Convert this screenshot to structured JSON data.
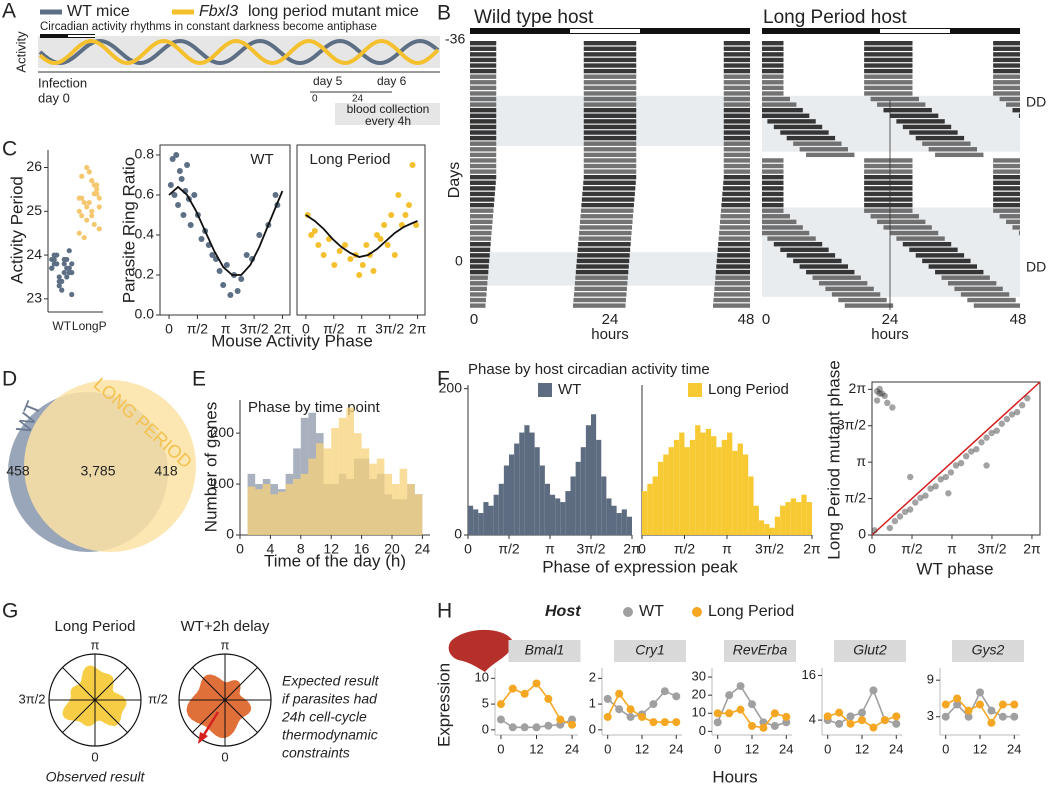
{
  "figure": {
    "panel_labels": [
      "A",
      "B",
      "C",
      "D",
      "E",
      "F",
      "G",
      "H"
    ]
  },
  "panel_a": {
    "legend": [
      {
        "label": "WT mice"
      },
      {
        "gene": "Fbxl3",
        "label": "long period mutant mice"
      }
    ],
    "subtitle": "Circadian activity rhythms in constant darkness become antiphase",
    "ylabel": "Activity",
    "infection": [
      "Infection",
      "day 0"
    ],
    "days": [
      "day 5",
      "day 6"
    ],
    "hours": [
      "0",
      "24"
    ],
    "collection": [
      "blood collection",
      "every 4h"
    ]
  },
  "panel_b": {
    "titles": [
      "Wild type host",
      "Long Period host"
    ],
    "ylabel": "Days",
    "yticks": [
      "-36",
      "0"
    ],
    "conditions": [
      "DD",
      "DD"
    ],
    "xticks": [
      "0",
      "24",
      "48"
    ],
    "xlabel": "hours"
  },
  "panel_g": {
    "titles": [
      "Long Period",
      "WT+2h delay"
    ],
    "angles": [
      "π",
      "3π/2",
      "π/2",
      "0"
    ],
    "caption": "Observed result",
    "note": [
      "Expected result",
      "if parasites had",
      "24h cell-cycle",
      "thermodynamic",
      "constraints"
    ]
  },
  "panel_h": {
    "title": "Host"
  },
  "chart_data": [
    {
      "type": "strip",
      "ylabel": "Activity Period",
      "categories": [
        "WT",
        "LongP"
      ],
      "colors": [
        "#5d6f85",
        "#f5c870"
      ],
      "ylim": [
        22.7,
        26.4
      ],
      "yticks": [
        23,
        24,
        25,
        26
      ],
      "values": [
        [
          23.9,
          23.7,
          23.8,
          23.5,
          24.0,
          23.6,
          23.9,
          23.4,
          23.8,
          23.7,
          24.1,
          23.6,
          23.3,
          23.9,
          23.8,
          23.5,
          23.2,
          24.0,
          23.7,
          23.6,
          23.9,
          23.4,
          23.8,
          23.1,
          23.7
        ],
        [
          25.3,
          25.6,
          24.9,
          25.1,
          25.8,
          24.6,
          25.4,
          25.2,
          24.4,
          25.0,
          25.5,
          25.7,
          24.8,
          25.3,
          25.1,
          24.7,
          25.9,
          25.2,
          24.5,
          25.4,
          25.0,
          26.0,
          24.9,
          25.3,
          25.6
        ]
      ]
    },
    {
      "type": "scatter",
      "title": "WT",
      "ylabel": "Parasite Ring Ratio",
      "xlabel": "Mouse Activity Phase",
      "xlim": [
        -0.5,
        6.7
      ],
      "xticks": [
        0,
        {
          "value": 1.5708,
          "label": "π/2"
        },
        {
          "value": 3.1416,
          "label": "π"
        },
        {
          "value": 4.7124,
          "label": "3π/2"
        },
        {
          "value": 6.2832,
          "label": "2π"
        }
      ],
      "ylim": [
        0,
        0.85
      ],
      "yticks": [
        {
          "value": 0,
          "label": "0.0"
        },
        {
          "value": 0.2,
          "label": "0.2"
        },
        {
          "value": 0.4,
          "label": "0.4"
        },
        {
          "value": 0.6,
          "label": "0.6"
        },
        {
          "value": 0.8,
          "label": "0.8"
        }
      ],
      "series": [
        {
          "color": "#5d6f85",
          "style": "points",
          "x": [
            0.1,
            0.2,
            0.3,
            0.4,
            0.5,
            0.6,
            0.7,
            0.8,
            0.9,
            1.0,
            1.1,
            1.2,
            1.4,
            1.6,
            1.8,
            2.0,
            2.2,
            2.4,
            2.6,
            2.8,
            3.0,
            3.2,
            3.4,
            3.6,
            3.8,
            4.0,
            4.3,
            4.6,
            5.0,
            5.5,
            5.9,
            6.0
          ],
          "values": [
            0.65,
            0.78,
            0.6,
            0.8,
            0.55,
            0.72,
            0.68,
            0.5,
            0.62,
            0.75,
            0.58,
            0.45,
            0.6,
            0.5,
            0.38,
            0.42,
            0.35,
            0.3,
            0.28,
            0.22,
            0.15,
            0.25,
            0.1,
            0.2,
            0.12,
            0.18,
            0.3,
            0.28,
            0.4,
            0.45,
            0.6,
            0.55
          ]
        },
        {
          "color": "#111111",
          "style": "line",
          "x": [
            0,
            0.5,
            1,
            1.5,
            2,
            2.5,
            3,
            3.5,
            4,
            4.5,
            5,
            5.5,
            6,
            6.28
          ],
          "values": [
            0.6,
            0.64,
            0.6,
            0.52,
            0.42,
            0.32,
            0.24,
            0.2,
            0.2,
            0.25,
            0.34,
            0.45,
            0.56,
            0.62
          ]
        }
      ]
    },
    {
      "type": "scatter",
      "title": "Long Period",
      "xlim": [
        -0.5,
        6.7
      ],
      "xticks": [
        0,
        {
          "value": 1.5708,
          "label": "π/2"
        },
        {
          "value": 3.1416,
          "label": "π"
        },
        {
          "value": 4.7124,
          "label": "3π/2"
        },
        {
          "value": 6.2832,
          "label": "2π"
        }
      ],
      "ylim": [
        0,
        0.85
      ],
      "series": [
        {
          "color": "#f5c02e",
          "style": "points",
          "x": [
            0.1,
            0.3,
            0.5,
            0.7,
            1.0,
            1.3,
            1.6,
            1.9,
            2.2,
            2.5,
            2.8,
            3.0,
            3.2,
            3.4,
            3.6,
            3.8,
            4.0,
            4.2,
            4.4,
            4.6,
            4.8,
            5.0,
            5.2,
            5.4,
            5.6,
            5.8,
            6.0,
            6.2
          ],
          "values": [
            0.5,
            0.4,
            0.42,
            0.35,
            0.3,
            0.38,
            0.25,
            0.32,
            0.35,
            0.28,
            0.3,
            0.2,
            0.25,
            0.35,
            0.3,
            0.22,
            0.4,
            0.38,
            0.45,
            0.35,
            0.5,
            0.3,
            0.6,
            0.45,
            0.5,
            0.55,
            0.75,
            0.45
          ]
        },
        {
          "color": "#111111",
          "style": "line",
          "x": [
            0,
            0.5,
            1,
            1.5,
            2,
            2.5,
            3,
            3.5,
            4,
            4.5,
            5,
            5.5,
            6,
            6.28
          ],
          "values": [
            0.5,
            0.47,
            0.43,
            0.38,
            0.34,
            0.31,
            0.29,
            0.3,
            0.33,
            0.37,
            0.41,
            0.44,
            0.46,
            0.47
          ]
        }
      ]
    },
    {
      "type": "venn",
      "sets": [
        "WT",
        "LONG PERIOD"
      ],
      "colors": [
        "#8e9bb0",
        "#fbe2a4"
      ],
      "values": [
        458,
        3785,
        418
      ],
      "value_labels": [
        "458",
        "3,785",
        "418"
      ]
    },
    {
      "type": "histogram",
      "title": "Phase by time point",
      "ylabel": "Number of genes",
      "xlabel": "Time of the day (h)",
      "xlim": [
        0,
        25
      ],
      "xticks": [
        0,
        4,
        8,
        12,
        16,
        20,
        24
      ],
      "ylim": [
        0,
        265
      ],
      "yticks": [
        0,
        100,
        200
      ],
      "bins": [
        1,
        2,
        3,
        4,
        5,
        6,
        7,
        8,
        9,
        10,
        11,
        12,
        13,
        14,
        15,
        16,
        17,
        18,
        19,
        20,
        21,
        22,
        23,
        24
      ],
      "series": [
        {
          "color": "#8c97a8",
          "values": [
            120,
            100,
            110,
            100,
            90,
            120,
            170,
            230,
            240,
            200,
            100,
            100,
            120,
            110,
            150,
            150,
            110,
            120,
            80,
            70,
            70,
            100,
            80
          ]
        },
        {
          "color": "#f7d27a",
          "values": [
            95,
            90,
            100,
            80,
            85,
            100,
            110,
            120,
            150,
            180,
            170,
            210,
            230,
            250,
            200,
            170,
            140,
            150,
            120,
            100,
            130,
            100,
            80
          ]
        }
      ]
    },
    {
      "type": "histogram",
      "title": "Phase by host circadian activity time",
      "xlabel": "Phase of expression peak",
      "xlim": [
        0,
        6.2832
      ],
      "xticks": [
        0,
        {
          "value": 1.5708,
          "label": "π/2"
        },
        {
          "value": 3.1416,
          "label": "π"
        },
        {
          "value": 4.7124,
          "label": "3π/2"
        },
        {
          "value": 6.2832,
          "label": "2π"
        }
      ],
      "ylim": [
        0,
        205
      ],
      "yticks": [
        0,
        200
      ],
      "bins": [
        0,
        0.19635,
        0.3927,
        0.58905,
        0.7854,
        0.98175,
        1.1781,
        1.37445,
        1.5708,
        1.76715,
        1.9635,
        2.15985,
        2.3562,
        2.55255,
        2.7489,
        2.94525,
        3.1416,
        3.33795,
        3.5343,
        3.73065,
        3.927,
        4.12335,
        4.3197,
        4.51605,
        4.7124,
        4.90875,
        5.1051,
        5.30145,
        5.4978,
        5.69415,
        5.8905,
        6.08685,
        6.2832
      ],
      "series": [
        {
          "name": "WT",
          "color": "#5d6c80",
          "values": [
            40,
            35,
            30,
            45,
            40,
            55,
            70,
            95,
            110,
            125,
            140,
            150,
            140,
            120,
            95,
            70,
            55,
            50,
            45,
            60,
            80,
            100,
            120,
            150,
            165,
            130,
            80,
            50,
            40,
            30,
            35,
            25
          ]
        }
      ]
    },
    {
      "type": "histogram",
      "xlim": [
        0,
        6.2832
      ],
      "xticks": [
        0,
        {
          "value": 1.5708,
          "label": "π/2"
        },
        {
          "value": 3.1416,
          "label": "π"
        },
        {
          "value": 4.7124,
          "label": "3π/2"
        },
        {
          "value": 6.2832,
          "label": "2π"
        }
      ],
      "ylim": [
        0,
        205
      ],
      "bins": [
        0,
        0.19635,
        0.3927,
        0.58905,
        0.7854,
        0.98175,
        1.1781,
        1.37445,
        1.5708,
        1.76715,
        1.9635,
        2.15985,
        2.3562,
        2.55255,
        2.7489,
        2.94525,
        3.1416,
        3.33795,
        3.5343,
        3.73065,
        3.927,
        4.12335,
        4.3197,
        4.51605,
        4.7124,
        4.90875,
        5.1051,
        5.30145,
        5.4978,
        5.69415,
        5.8905,
        6.08685,
        6.2832
      ],
      "series": [
        {
          "name": "Long Period",
          "color": "#f7c933",
          "values": [
            60,
            70,
            80,
            100,
            110,
            120,
            130,
            140,
            120,
            130,
            150,
            140,
            145,
            135,
            120,
            130,
            140,
            115,
            125,
            110,
            80,
            40,
            20,
            15,
            10,
            25,
            40,
            45,
            50,
            45,
            55,
            45
          ]
        }
      ]
    },
    {
      "type": "scatter",
      "ylabel": "Long Period mutant phase",
      "xlabel": "WT phase",
      "xlim": [
        0,
        6.6
      ],
      "ylim": [
        0,
        6.6
      ],
      "xticks": [
        0,
        {
          "value": 1.5708,
          "label": "π/2"
        },
        {
          "value": 3.1416,
          "label": "π"
        },
        {
          "value": 4.7124,
          "label": "3π/2"
        },
        {
          "value": 6.2832,
          "label": "2π"
        }
      ],
      "yticks": [
        0,
        {
          "value": 1.5708,
          "label": "π/2"
        },
        {
          "value": 3.1416,
          "label": "π"
        },
        {
          "value": 4.7124,
          "label": "3π/2"
        },
        {
          "value": 6.2832,
          "label": "2π"
        }
      ],
      "series": [
        {
          "color": "#333333",
          "style": "points",
          "x": [
            0.1,
            0.2,
            0.3,
            0.5,
            0.7,
            0.9,
            1.1,
            1.3,
            1.5,
            1.7,
            1.9,
            2.1,
            2.3,
            2.5,
            2.7,
            2.9,
            3.1,
            3.3,
            3.5,
            3.7,
            3.9,
            4.1,
            4.3,
            4.5,
            4.7,
            4.9,
            5.1,
            5.3,
            5.5,
            5.7,
            5.9,
            6.1,
            0.2,
            0.4,
            0.6,
            0.3,
            0.8,
            1.5,
            3.0,
            4.5
          ],
          "values": [
            0.2,
            6.2,
            6.1,
            6.0,
            0.3,
            0.6,
            0.8,
            1.0,
            1.1,
            1.4,
            1.6,
            1.7,
            2.0,
            2.1,
            2.4,
            2.5,
            2.7,
            3.0,
            3.1,
            3.4,
            3.6,
            3.7,
            4.0,
            4.2,
            4.4,
            4.5,
            4.8,
            5.0,
            5.2,
            5.3,
            5.6,
            5.9,
            5.8,
            6.1,
            5.7,
            6.3,
            5.5,
            2.5,
            1.8,
            3.0
          ]
        }
      ]
    },
    {
      "type": "line",
      "title": "Bmal1",
      "ylabel": "Expression",
      "xlabel": "Hours",
      "x": [
        0,
        4,
        8,
        12,
        16,
        20,
        24
      ],
      "xlim": [
        -2,
        26
      ],
      "xticks": [
        0,
        12,
        24
      ],
      "ylim": [
        -1,
        12
      ],
      "yticks": [
        0,
        5,
        10
      ],
      "series": [
        {
          "name": "WT",
          "color": "#a0a0a0",
          "values": [
            2,
            0.5,
            0.5,
            0.5,
            0.8,
            1,
            2
          ]
        },
        {
          "name": "Long Period",
          "color": "#f5a623",
          "values": [
            5,
            8,
            7,
            9,
            6,
            2,
            1
          ]
        }
      ]
    },
    {
      "type": "line",
      "title": "Cry1",
      "x": [
        0,
        4,
        8,
        12,
        16,
        20,
        24
      ],
      "xlim": [
        -2,
        26
      ],
      "xticks": [
        0,
        12,
        24
      ],
      "ylim": [
        -0.2,
        2.4
      ],
      "yticks": [
        0,
        1,
        2
      ],
      "series": [
        {
          "color": "#a0a0a0",
          "values": [
            1.2,
            0.8,
            0.5,
            0.6,
            1.0,
            1.5,
            1.3
          ]
        },
        {
          "color": "#f5a623",
          "values": [
            0.5,
            1.4,
            0.8,
            0.5,
            0.3,
            0.3,
            0.3
          ]
        }
      ]
    },
    {
      "type": "line",
      "title": "RevErba",
      "x": [
        0,
        4,
        8,
        12,
        16,
        20,
        24
      ],
      "xlim": [
        -2,
        26
      ],
      "xticks": [
        0,
        12,
        24
      ],
      "ylim": [
        -2,
        35
      ],
      "yticks": [
        0,
        10,
        20,
        30
      ],
      "series": [
        {
          "color": "#a0a0a0",
          "values": [
            5,
            20,
            25,
            15,
            5,
            3,
            5
          ]
        },
        {
          "color": "#f5a623",
          "values": [
            10,
            10,
            12,
            3,
            2,
            10,
            8
          ]
        }
      ]
    },
    {
      "type": "line",
      "title": "Glut2",
      "x": [
        0,
        4,
        8,
        12,
        16,
        20,
        24
      ],
      "xlim": [
        -2,
        26
      ],
      "xticks": [
        0,
        12,
        24
      ],
      "ylim": [
        0,
        18
      ],
      "yticks": [
        4,
        16
      ],
      "series": [
        {
          "color": "#a0a0a0",
          "values": [
            4,
            3,
            5,
            6,
            12,
            4,
            3
          ]
        },
        {
          "color": "#f5a623",
          "values": [
            5,
            6,
            3,
            4,
            2,
            4,
            5
          ]
        }
      ]
    },
    {
      "type": "line",
      "title": "Gys2",
      "x": [
        0,
        4,
        8,
        12,
        16,
        20,
        24
      ],
      "xlim": [
        -2,
        26
      ],
      "xticks": [
        0,
        12,
        24
      ],
      "ylim": [
        0,
        11
      ],
      "yticks": [
        3,
        9
      ],
      "series": [
        {
          "color": "#a0a0a0",
          "values": [
            3,
            5,
            3,
            7,
            4,
            3,
            3
          ]
        },
        {
          "color": "#f5a623",
          "values": [
            5,
            6,
            4,
            5,
            2,
            5,
            5
          ]
        }
      ]
    }
  ]
}
